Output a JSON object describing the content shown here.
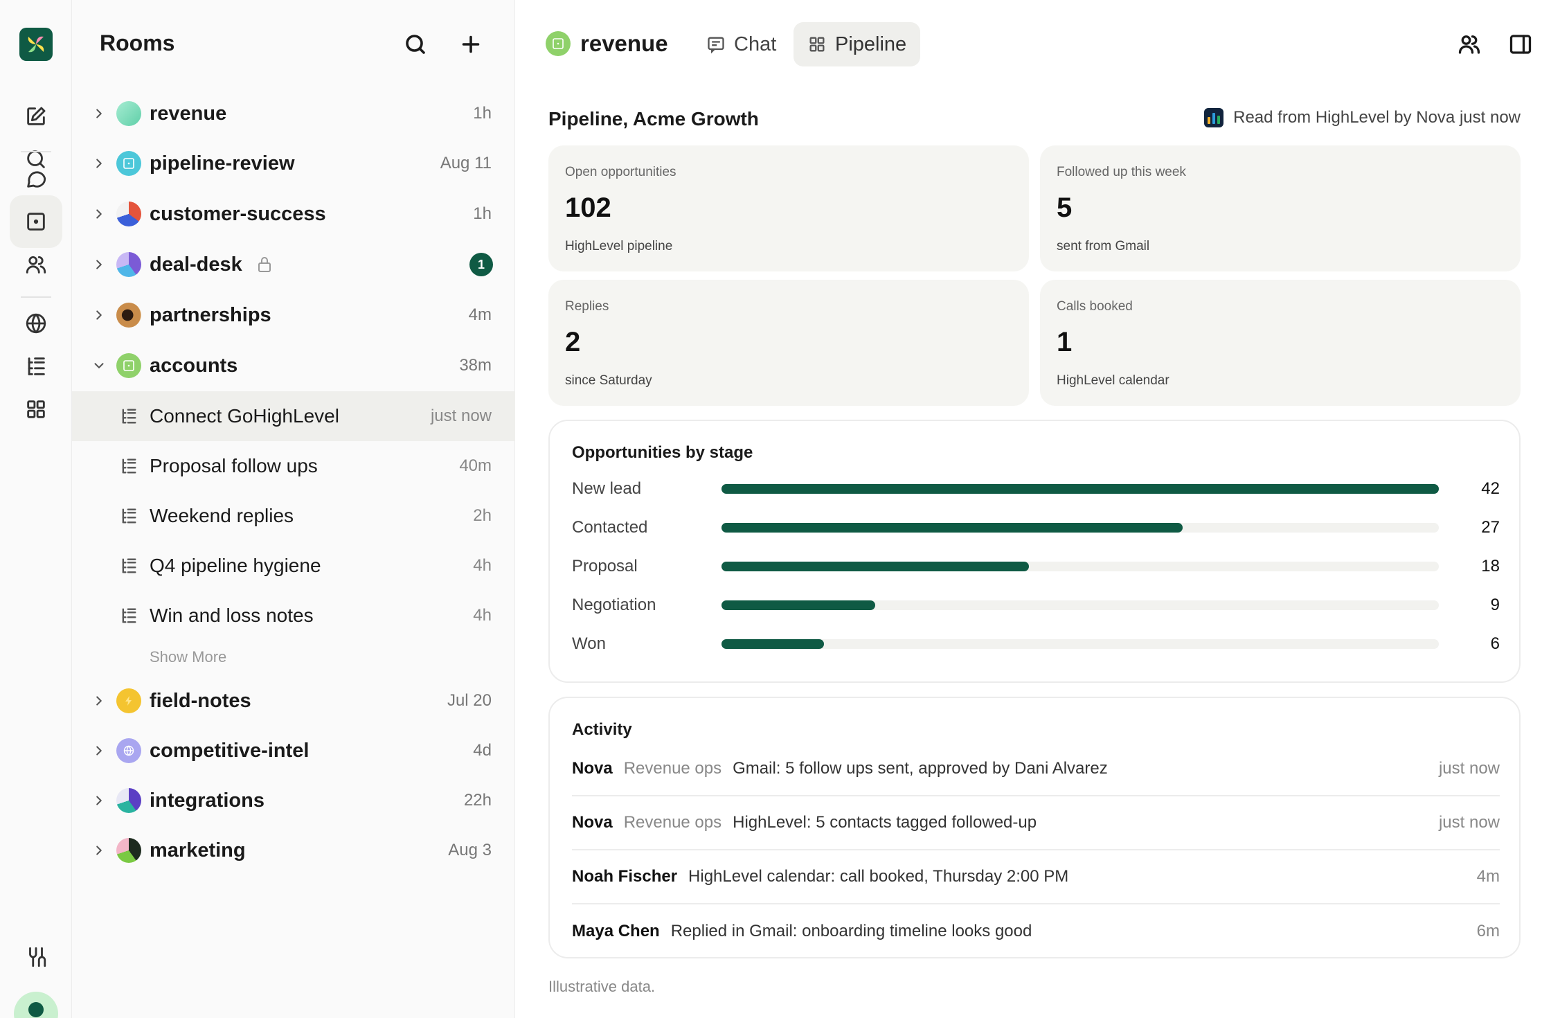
{
  "sidebar": {
    "title": "Rooms",
    "rooms_top": [
      {
        "name": "revenue",
        "time": "1h",
        "color": "#7fd8b8",
        "expanded": false
      },
      {
        "name": "pipeline-review",
        "time": "Aug 11",
        "color": "#4cc7d9",
        "expanded": false
      },
      {
        "name": "customer-success",
        "time": "1h",
        "color": "#e4543c",
        "expanded": false
      },
      {
        "name": "deal-desk",
        "time": "",
        "badge": "1",
        "locked": true,
        "color": "#7b5bd6",
        "expanded": false
      },
      {
        "name": "partnerships",
        "time": "4m",
        "color": "#c98c4a",
        "expanded": false
      },
      {
        "name": "accounts",
        "time": "38m",
        "color": "#8fd16a",
        "expanded": true
      }
    ],
    "threads": [
      {
        "name": "Connect GoHighLevel",
        "time": "just now",
        "selected": true
      },
      {
        "name": "Proposal follow ups",
        "time": "40m"
      },
      {
        "name": "Weekend replies",
        "time": "2h"
      },
      {
        "name": "Q4 pipeline hygiene",
        "time": "4h"
      },
      {
        "name": "Win and loss notes",
        "time": "4h"
      }
    ],
    "show_more": "Show More",
    "rooms_bottom": [
      {
        "name": "field-notes",
        "time": "Jul 20",
        "color": "#f4c430"
      },
      {
        "name": "competitive-intel",
        "time": "4d",
        "color": "#a9a6f0"
      },
      {
        "name": "integrations",
        "time": "22h",
        "color": "#5b3fc4"
      },
      {
        "name": "marketing",
        "time": "Aug 3",
        "color": "#1d2b1f"
      }
    ]
  },
  "header": {
    "room": "revenue",
    "tabs": [
      {
        "label": "Chat",
        "icon": "chat-icon",
        "active": false
      },
      {
        "label": "Pipeline",
        "icon": "grid-icon",
        "active": true
      }
    ]
  },
  "pipeline": {
    "title": "Pipeline, Acme Growth",
    "source": "Read from HighLevel by Nova just now",
    "cards": [
      {
        "label": "Open opportunities",
        "value": "102",
        "sub": "HighLevel pipeline"
      },
      {
        "label": "Followed up this week",
        "value": "5",
        "sub": "sent from Gmail"
      },
      {
        "label": "Replies",
        "value": "2",
        "sub": "since Saturday"
      },
      {
        "label": "Calls booked",
        "value": "1",
        "sub": "HighLevel calendar"
      }
    ]
  },
  "chart_data": {
    "type": "bar",
    "title": "Opportunities by stage",
    "categories": [
      "New lead",
      "Contacted",
      "Proposal",
      "Negotiation",
      "Won"
    ],
    "values": [
      42,
      27,
      18,
      9,
      6
    ],
    "xlim": [
      0,
      42
    ],
    "color": "#0f5a44"
  },
  "activity": {
    "title": "Activity",
    "items": [
      {
        "who": "Nova",
        "team": "Revenue ops",
        "what": "Gmail: 5 follow ups sent, approved by Dani Alvarez",
        "when": "just now"
      },
      {
        "who": "Nova",
        "team": "Revenue ops",
        "what": "HighLevel: 5 contacts tagged followed-up",
        "when": "just now"
      },
      {
        "who": "Noah Fischer",
        "team": "",
        "what": "HighLevel calendar: call booked, Thursday 2:00 PM",
        "when": "4m"
      },
      {
        "who": "Maya Chen",
        "team": "",
        "what": "Replied in Gmail: onboarding timeline looks good",
        "when": "6m"
      }
    ]
  },
  "footnote": "Illustrative data.",
  "colors": {
    "accent": "#0f5a44",
    "card_bg": "#f5f5f2",
    "selected_bg": "#efefec"
  }
}
